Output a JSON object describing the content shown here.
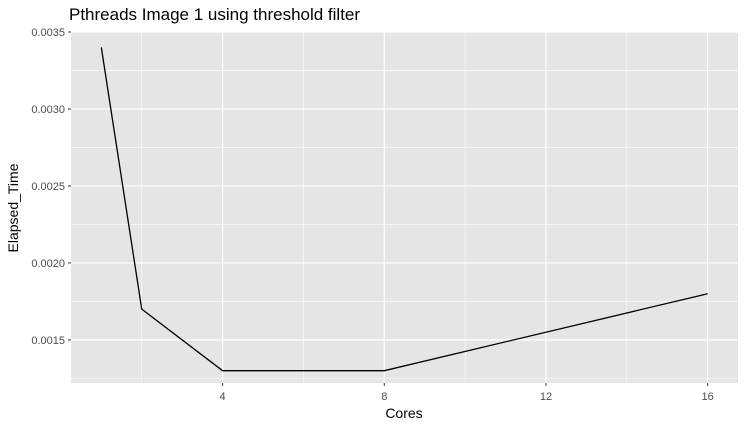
{
  "chart_data": {
    "type": "line",
    "title": "Pthreads Image 1 using threshold filter",
    "xlabel": "Cores",
    "ylabel": "Elapsed_Time",
    "x": [
      1,
      2,
      4,
      8,
      16
    ],
    "series": [
      {
        "values": [
          0.0034,
          0.0017,
          0.0013,
          0.0013,
          0.0018
        ]
      }
    ],
    "xlim": [
      0.25,
      16.75
    ],
    "ylim": [
      0.00122,
      0.0035
    ],
    "x_ticks": [
      4,
      8,
      12,
      16
    ],
    "x_tick_labels": [
      "4",
      "8",
      "12",
      "16"
    ],
    "y_ticks": [
      0.0015,
      0.002,
      0.0025,
      0.003,
      0.0035
    ],
    "y_tick_labels": [
      "0.0015",
      "0.0020",
      "0.0025",
      "0.0030",
      "0.0035"
    ],
    "x_minor_ticks": [
      2,
      6,
      10,
      14
    ],
    "y_minor_ticks": [
      0.00125,
      0.00175,
      0.00225,
      0.00275,
      0.00325
    ],
    "grid": true,
    "colors": {
      "panel": "#e5e5e5",
      "grid": "#ffffff",
      "line": "#000000",
      "tick_text": "#4d4d4d"
    }
  }
}
